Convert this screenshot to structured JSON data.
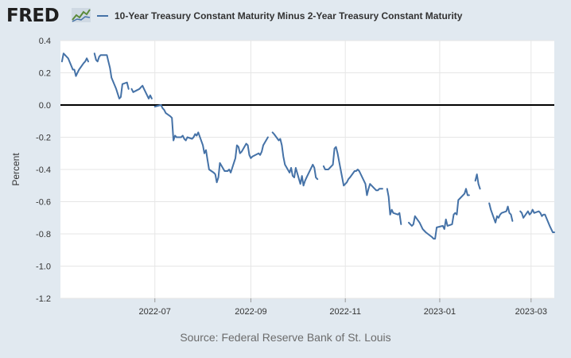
{
  "brand": {
    "name": "FRED"
  },
  "legend": {
    "label": "10-Year Treasury Constant Maturity Minus 2-Year Treasury Constant Maturity",
    "icon": "line-swatch",
    "color": "#4572a7"
  },
  "source": "Source: Federal Reserve Bank of St. Louis",
  "chart_data": {
    "type": "line",
    "title": "10-Year Treasury Constant Maturity Minus 2-Year Treasury Constant Maturity",
    "xlabel": "",
    "ylabel": "Percent",
    "ylim": [
      -1.2,
      0.4
    ],
    "yticks": [
      0.4,
      0.2,
      0.0,
      -0.2,
      -0.4,
      -0.6,
      -0.8,
      -1.0,
      -1.2
    ],
    "ytick_labels": [
      "0.4",
      "0.2",
      "0.0",
      "-0.2",
      "-0.4",
      "-0.6",
      "-0.8",
      "-1.0",
      "-1.2"
    ],
    "xrange": [
      "2022-05-01",
      "2023-03-16"
    ],
    "xticks": [
      "2022-07-01",
      "2022-09-01",
      "2022-11-01",
      "2023-01-01",
      "2023-03-01"
    ],
    "xtick_labels": [
      "2022-07",
      "2022-09",
      "2022-11",
      "2023-01",
      "2023-03"
    ],
    "zero_line": true,
    "grid": true,
    "series": [
      {
        "name": "10-Year Treasury Constant Maturity Minus 2-Year Treasury Constant Maturity",
        "color": "#4572a7",
        "segments": [
          [
            [
              "2022-05-02",
              0.27
            ],
            [
              "2022-05-03",
              0.32
            ],
            [
              "2022-05-04",
              0.31
            ],
            [
              "2022-05-05",
              0.3
            ],
            [
              "2022-05-06",
              0.29
            ],
            [
              "2022-05-09",
              0.22
            ],
            [
              "2022-05-10",
              0.22
            ],
            [
              "2022-05-11",
              0.18
            ],
            [
              "2022-05-12",
              0.2
            ],
            [
              "2022-05-13",
              0.22
            ],
            [
              "2022-05-16",
              0.26
            ],
            [
              "2022-05-17",
              0.27
            ],
            [
              "2022-05-18",
              0.29
            ],
            [
              "2022-05-19",
              0.27
            ]
          ],
          [
            [
              "2022-05-23",
              0.32
            ],
            [
              "2022-05-24",
              0.28
            ],
            [
              "2022-05-25",
              0.27
            ],
            [
              "2022-05-26",
              0.3
            ],
            [
              "2022-05-27",
              0.31
            ],
            [
              "2022-05-31",
              0.31
            ],
            [
              "2022-06-01",
              0.27
            ],
            [
              "2022-06-02",
              0.23
            ],
            [
              "2022-06-03",
              0.17
            ],
            [
              "2022-06-06",
              0.1
            ],
            [
              "2022-06-07",
              0.07
            ],
            [
              "2022-06-08",
              0.04
            ],
            [
              "2022-06-09",
              0.05
            ],
            [
              "2022-06-10",
              0.13
            ],
            [
              "2022-06-13",
              0.14
            ],
            [
              "2022-06-14",
              0.1
            ]
          ],
          [
            [
              "2022-06-16",
              0.1
            ],
            [
              "2022-06-17",
              0.08
            ],
            [
              "2022-06-21",
              0.1
            ],
            [
              "2022-06-22",
              0.11
            ],
            [
              "2022-06-23",
              0.12
            ],
            [
              "2022-06-24",
              0.1
            ],
            [
              "2022-06-27",
              0.04
            ],
            [
              "2022-06-28",
              0.06
            ],
            [
              "2022-06-29",
              0.04
            ]
          ],
          [
            [
              "2022-07-01",
              -0.01
            ],
            [
              "2022-07-05",
              0.0
            ],
            [
              "2022-07-06",
              -0.02
            ],
            [
              "2022-07-07",
              -0.03
            ],
            [
              "2022-07-08",
              -0.05
            ],
            [
              "2022-07-11",
              -0.07
            ],
            [
              "2022-07-12",
              -0.08
            ],
            [
              "2022-07-13",
              -0.22
            ],
            [
              "2022-07-14",
              -0.19
            ],
            [
              "2022-07-15",
              -0.2
            ],
            [
              "2022-07-18",
              -0.2
            ],
            [
              "2022-07-19",
              -0.19
            ],
            [
              "2022-07-20",
              -0.21
            ],
            [
              "2022-07-21",
              -0.22
            ],
            [
              "2022-07-22",
              -0.2
            ],
            [
              "2022-07-25",
              -0.21
            ],
            [
              "2022-07-26",
              -0.2
            ],
            [
              "2022-07-27",
              -0.18
            ],
            [
              "2022-07-28",
              -0.19
            ],
            [
              "2022-07-29",
              -0.17
            ],
            [
              "2022-08-01",
              -0.25
            ],
            [
              "2022-08-02",
              -0.3
            ],
            [
              "2022-08-03",
              -0.28
            ],
            [
              "2022-08-04",
              -0.34
            ],
            [
              "2022-08-05",
              -0.4
            ],
            [
              "2022-08-08",
              -0.42
            ],
            [
              "2022-08-09",
              -0.43
            ],
            [
              "2022-08-10",
              -0.48
            ],
            [
              "2022-08-11",
              -0.45
            ],
            [
              "2022-08-12",
              -0.36
            ],
            [
              "2022-08-15",
              -0.41
            ],
            [
              "2022-08-16",
              -0.41
            ],
            [
              "2022-08-17",
              -0.41
            ],
            [
              "2022-08-18",
              -0.4
            ],
            [
              "2022-08-19",
              -0.42
            ],
            [
              "2022-08-22",
              -0.33
            ],
            [
              "2022-08-23",
              -0.25
            ],
            [
              "2022-08-24",
              -0.26
            ],
            [
              "2022-08-25",
              -0.3
            ],
            [
              "2022-08-26",
              -0.29
            ],
            [
              "2022-08-29",
              -0.24
            ],
            [
              "2022-08-30",
              -0.25
            ],
            [
              "2022-08-31",
              -0.31
            ],
            [
              "2022-09-01",
              -0.33
            ],
            [
              "2022-09-02",
              -0.32
            ],
            [
              "2022-09-06",
              -0.3
            ],
            [
              "2022-09-07",
              -0.31
            ],
            [
              "2022-09-08",
              -0.29
            ],
            [
              "2022-09-09",
              -0.25
            ],
            [
              "2022-09-12",
              -0.2
            ]
          ],
          [
            [
              "2022-09-15",
              -0.17
            ],
            [
              "2022-09-16",
              -0.18
            ],
            [
              "2022-09-19",
              -0.22
            ],
            [
              "2022-09-20",
              -0.21
            ],
            [
              "2022-09-21",
              -0.25
            ],
            [
              "2022-09-22",
              -0.32
            ],
            [
              "2022-09-23",
              -0.37
            ],
            [
              "2022-09-26",
              -0.42
            ],
            [
              "2022-09-27",
              -0.39
            ],
            [
              "2022-09-28",
              -0.44
            ],
            [
              "2022-09-29",
              -0.45
            ],
            [
              "2022-09-30",
              -0.39
            ],
            [
              "2022-10-03",
              -0.49
            ],
            [
              "2022-10-04",
              -0.44
            ],
            [
              "2022-10-05",
              -0.5
            ],
            [
              "2022-10-06",
              -0.47
            ],
            [
              "2022-10-07",
              -0.45
            ],
            [
              "2022-10-11",
              -0.37
            ],
            [
              "2022-10-12",
              -0.39
            ],
            [
              "2022-10-13",
              -0.45
            ],
            [
              "2022-10-14",
              -0.46
            ]
          ],
          [
            [
              "2022-10-18",
              -0.38
            ],
            [
              "2022-10-19",
              -0.4
            ],
            [
              "2022-10-20",
              -0.4
            ],
            [
              "2022-10-21",
              -0.4
            ],
            [
              "2022-10-24",
              -0.37
            ],
            [
              "2022-10-25",
              -0.27
            ],
            [
              "2022-10-26",
              -0.26
            ],
            [
              "2022-10-27",
              -0.3
            ],
            [
              "2022-10-28",
              -0.35
            ],
            [
              "2022-10-31",
              -0.5
            ],
            [
              "2022-11-01",
              -0.49
            ],
            [
              "2022-11-02",
              -0.48
            ],
            [
              "2022-11-03",
              -0.46
            ],
            [
              "2022-11-04",
              -0.45
            ],
            [
              "2022-11-07",
              -0.41
            ],
            [
              "2022-11-08",
              -0.41
            ],
            [
              "2022-11-09",
              -0.4
            ],
            [
              "2022-11-10",
              -0.41
            ],
            [
              "2022-11-14",
              -0.49
            ],
            [
              "2022-11-15",
              -0.56
            ],
            [
              "2022-11-16",
              -0.52
            ],
            [
              "2022-11-17",
              -0.49
            ],
            [
              "2022-11-18",
              -0.5
            ],
            [
              "2022-11-21",
              -0.53
            ],
            [
              "2022-11-22",
              -0.53
            ],
            [
              "2022-11-23",
              -0.52
            ],
            [
              "2022-11-25",
              -0.52
            ]
          ],
          [
            [
              "2022-11-28",
              -0.52
            ],
            [
              "2022-11-29",
              -0.57
            ],
            [
              "2022-11-30",
              -0.68
            ],
            [
              "2022-12-01",
              -0.65
            ],
            [
              "2022-12-02",
              -0.67
            ],
            [
              "2022-12-05",
              -0.68
            ],
            [
              "2022-12-06",
              -0.67
            ],
            [
              "2022-12-07",
              -0.74
            ]
          ],
          [
            [
              "2022-12-12",
              -0.73
            ],
            [
              "2022-12-13",
              -0.74
            ],
            [
              "2022-12-14",
              -0.75
            ],
            [
              "2022-12-15",
              -0.74
            ],
            [
              "2022-12-16",
              -0.69
            ],
            [
              "2022-12-19",
              -0.73
            ],
            [
              "2022-12-20",
              -0.75
            ],
            [
              "2022-12-21",
              -0.77
            ],
            [
              "2022-12-22",
              -0.78
            ],
            [
              "2022-12-23",
              -0.79
            ],
            [
              "2022-12-27",
              -0.82
            ],
            [
              "2022-12-28",
              -0.83
            ],
            [
              "2022-12-29",
              -0.83
            ],
            [
              "2022-12-30",
              -0.76
            ],
            [
              "2023-01-03",
              -0.75
            ],
            [
              "2023-01-04",
              -0.77
            ],
            [
              "2023-01-05",
              -0.71
            ],
            [
              "2023-01-06",
              -0.75
            ],
            [
              "2023-01-09",
              -0.74
            ],
            [
              "2023-01-10",
              -0.68
            ],
            [
              "2023-01-11",
              -0.67
            ],
            [
              "2023-01-12",
              -0.68
            ],
            [
              "2023-01-13",
              -0.59
            ],
            [
              "2023-01-17",
              -0.55
            ],
            [
              "2023-01-18",
              -0.52
            ],
            [
              "2023-01-19",
              -0.56
            ],
            [
              "2023-01-20",
              -0.56
            ]
          ],
          [
            [
              "2023-01-24",
              -0.47
            ],
            [
              "2023-01-25",
              -0.43
            ],
            [
              "2023-01-26",
              -0.49
            ],
            [
              "2023-01-27",
              -0.52
            ]
          ],
          [
            [
              "2023-02-02",
              -0.61
            ],
            [
              "2023-02-03",
              -0.65
            ],
            [
              "2023-02-06",
              -0.73
            ],
            [
              "2023-02-07",
              -0.69
            ],
            [
              "2023-02-08",
              -0.7
            ],
            [
              "2023-02-09",
              -0.68
            ],
            [
              "2023-02-10",
              -0.67
            ],
            [
              "2023-02-13",
              -0.66
            ],
            [
              "2023-02-14",
              -0.63
            ],
            [
              "2023-02-15",
              -0.67
            ],
            [
              "2023-02-16",
              -0.68
            ],
            [
              "2023-02-17",
              -0.72
            ]
          ],
          [
            [
              "2023-02-22",
              -0.66
            ],
            [
              "2023-02-23",
              -0.67
            ],
            [
              "2023-02-24",
              -0.7
            ],
            [
              "2023-02-27",
              -0.66
            ],
            [
              "2023-02-28",
              -0.68
            ],
            [
              "2023-03-01",
              -0.67
            ],
            [
              "2023-03-02",
              -0.65
            ],
            [
              "2023-03-03",
              -0.67
            ],
            [
              "2023-03-06",
              -0.66
            ],
            [
              "2023-03-07",
              -0.67
            ],
            [
              "2023-03-08",
              -0.69
            ],
            [
              "2023-03-09",
              -0.68
            ],
            [
              "2023-03-10",
              -0.68
            ],
            [
              "2023-03-13",
              -0.75
            ],
            [
              "2023-03-14",
              -0.77
            ],
            [
              "2023-03-15",
              -0.79
            ],
            [
              "2023-03-16",
              -0.79
            ]
          ]
        ]
      }
    ]
  }
}
